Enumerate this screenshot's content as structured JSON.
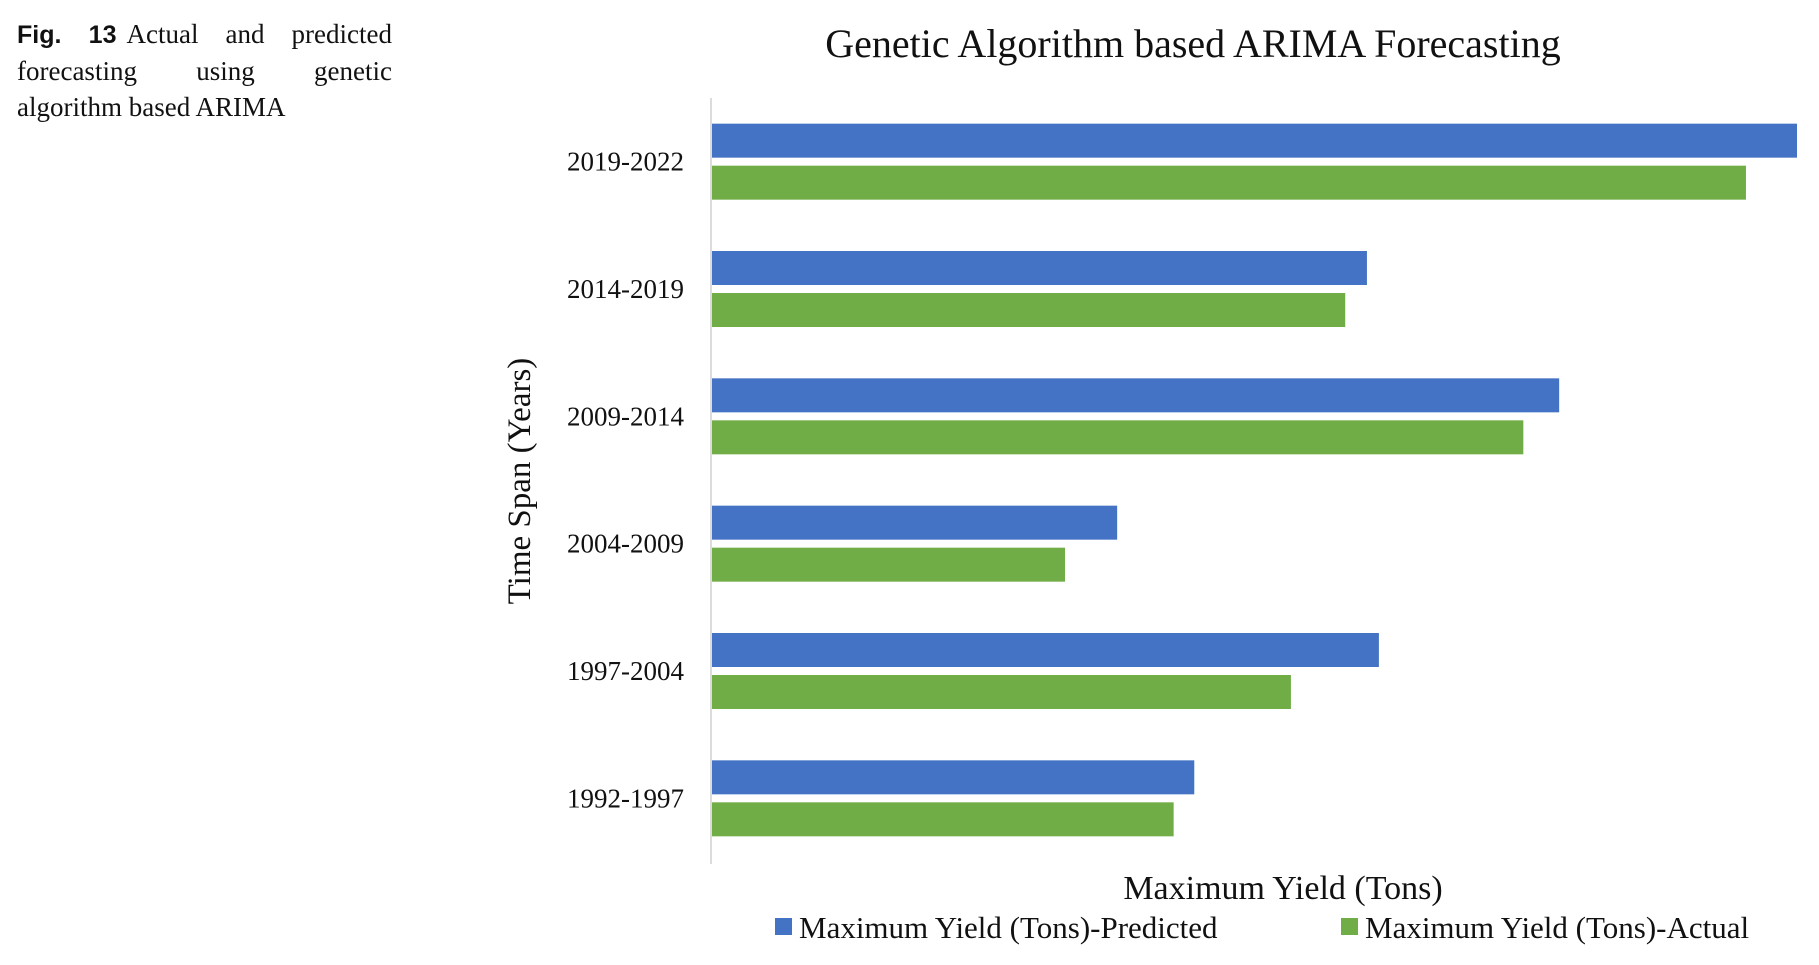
{
  "caption": {
    "label": "Fig. 13",
    "text": "Actual and predicted forecasting using genetic algorithm based ARIMA"
  },
  "chart_data": {
    "type": "bar",
    "orientation": "horizontal",
    "title": "Genetic Algorithm based ARIMA Forecasting",
    "xlabel": "Maximum Yield (Tons)",
    "ylabel": "Time Span (Years)",
    "categories": [
      "1992-1997",
      "1997-2004",
      "2004-2009",
      "2009-2014",
      "2014-2019",
      "2019-2022"
    ],
    "series": [
      {
        "name": "Maximum Yield (Tons)-Predicted",
        "color": "#4472C4",
        "values": [
          44.5,
          61.5,
          37.4,
          78.1,
          60.4,
          100
        ]
      },
      {
        "name": "Maximum Yield (Tons)-Actual",
        "color": "#70AD47",
        "values": [
          42.6,
          53.4,
          32.6,
          74.8,
          58.4,
          95.3
        ]
      }
    ],
    "xlim": [
      0,
      100
    ],
    "x_tick_labels_shown": false,
    "grid": false,
    "legend_position": "bottom"
  }
}
